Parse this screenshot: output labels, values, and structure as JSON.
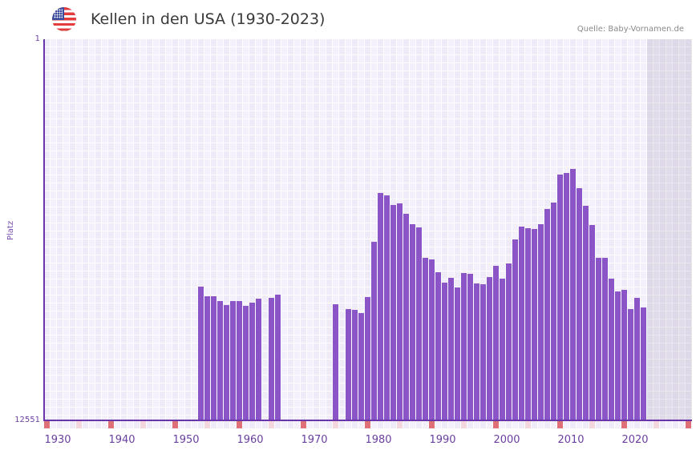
{
  "header": {
    "flag_icon": "us-flag-icon",
    "title": "Kellen in den USA (1930-2023)",
    "source": "Quelle: Baby-Vornamen.de"
  },
  "axis": {
    "y_title": "Platz",
    "y_top_label": "1",
    "y_bottom_label": "12551",
    "x_labels": [
      "1930",
      "1940",
      "1950",
      "1960",
      "1970",
      "1980",
      "1990",
      "2000",
      "2010",
      "2020"
    ]
  },
  "colors": {
    "bar": "#8b55c7",
    "axis": "#6a35a8",
    "decade_marker": "#e07078",
    "half_decade_marker": "#f4d6de",
    "grid_a": "#efebf8",
    "grid_b": "#f3f0fb"
  },
  "chart_data": {
    "type": "bar",
    "title": "Kellen in den USA (1930-2023)",
    "xlabel": "",
    "ylabel": "Platz",
    "ylim": [
      12551,
      1
    ],
    "y_inverted": true,
    "x_range": [
      1930,
      2030
    ],
    "grid": true,
    "shaded_future_from": 2024,
    "categories": [
      1954,
      1955,
      1956,
      1957,
      1958,
      1959,
      1960,
      1961,
      1962,
      1963,
      1965,
      1966,
      1975,
      1977,
      1978,
      1979,
      1980,
      1981,
      1982,
      1983,
      1984,
      1985,
      1986,
      1987,
      1988,
      1989,
      1990,
      1991,
      1992,
      1993,
      1994,
      1995,
      1996,
      1997,
      1998,
      1999,
      2000,
      2001,
      2002,
      2003,
      2004,
      2005,
      2006,
      2007,
      2008,
      2009,
      2010,
      2011,
      2012,
      2013,
      2014,
      2015,
      2016,
      2017,
      2018,
      2019,
      2020,
      2021,
      2022,
      2023
    ],
    "values": [
      8148,
      8464,
      8464,
      8622,
      8754,
      8622,
      8622,
      8781,
      8675,
      8543,
      8517,
      8412,
      8728,
      8886,
      8912,
      9018,
      8490,
      6671,
      5063,
      5142,
      5458,
      5406,
      5748,
      6091,
      6197,
      7198,
      7251,
      7673,
      8016,
      7858,
      8174,
      7699,
      7726,
      8042,
      8069,
      7831,
      7462,
      7884,
      7383,
      6592,
      6170,
      6223,
      6249,
      6091,
      5590,
      5379,
      4456,
      4404,
      4272,
      4905,
      5485,
      6117,
      7198,
      7198,
      7884,
      8306,
      8253,
      8886,
      8517,
      8833
    ]
  }
}
